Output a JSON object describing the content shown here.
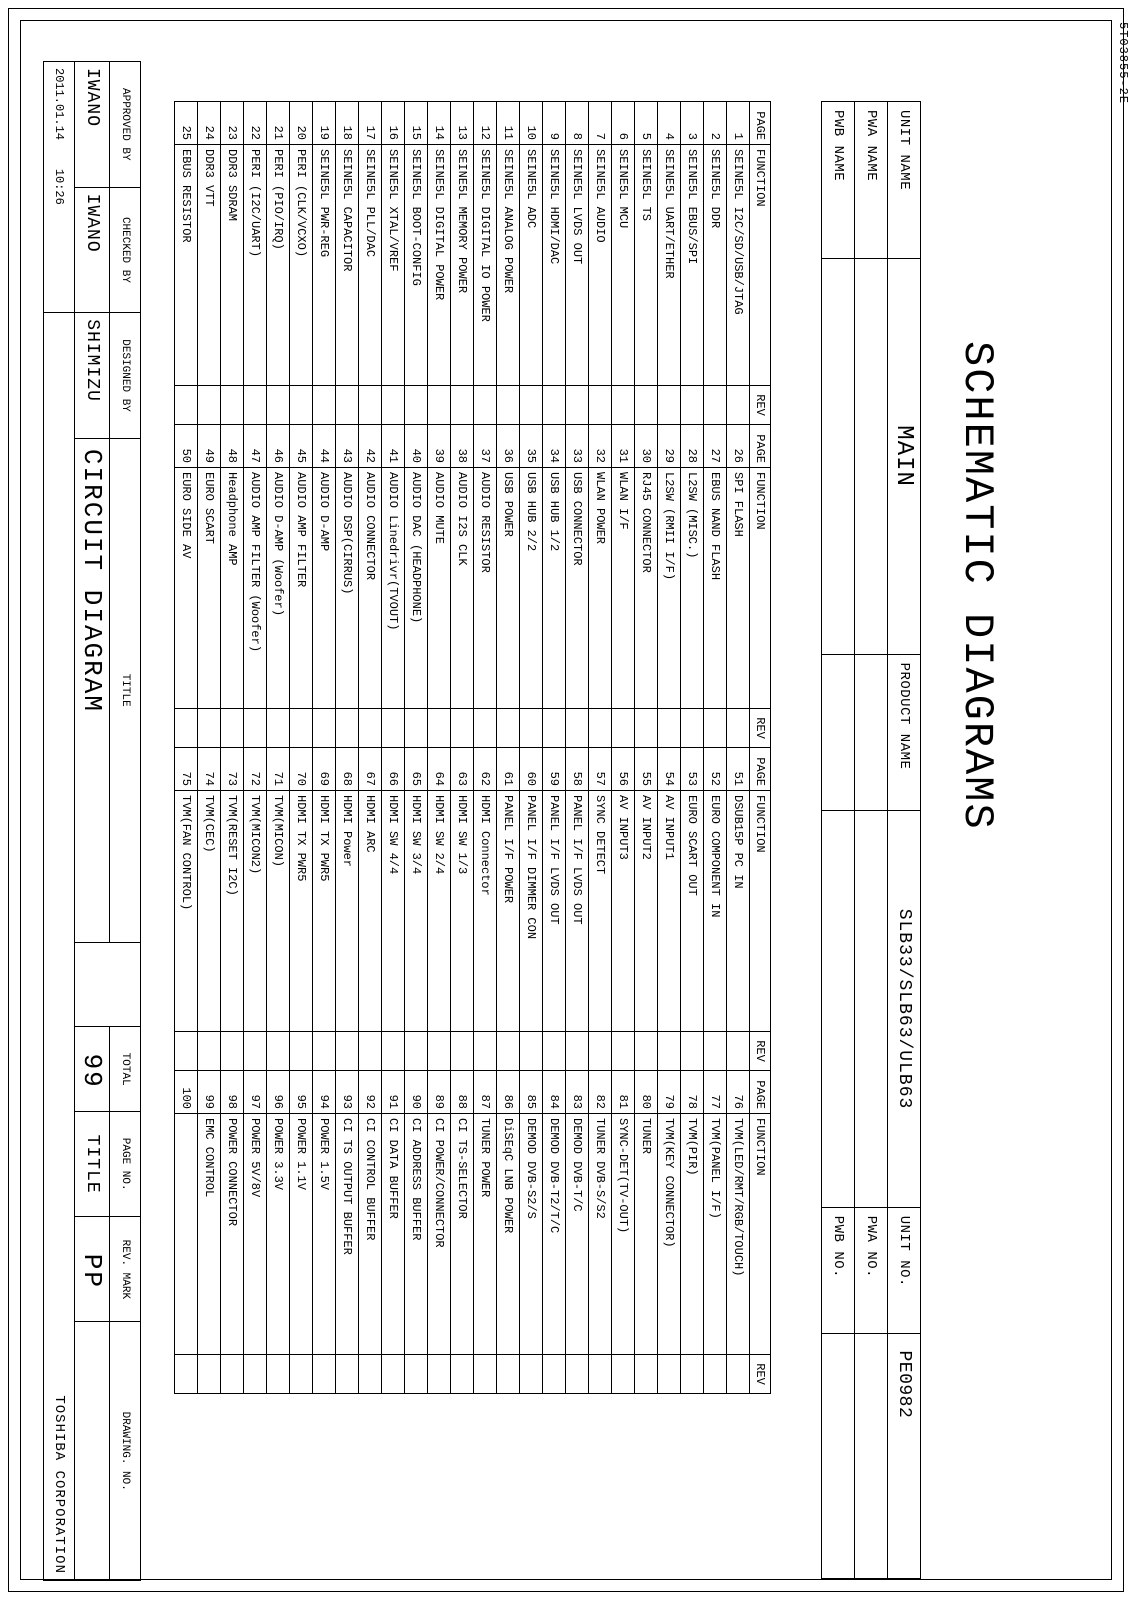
{
  "doc_code": "5T03855-2E",
  "title": "SCHEMATIC DIAGRAMS",
  "header": {
    "unit_name_label": "UNIT NAME",
    "unit_name_value": "MAIN",
    "product_name_label": "PRODUCT NAME",
    "product_name_value": "SLB33/SLB63/ULB63",
    "unit_no_label": "UNIT NO.",
    "unit_no_value": "PE0982",
    "pwa_name_label": "PWA NAME",
    "pwa_name_value": "",
    "pwa_no_label": "PWA NO.",
    "pwa_no_value": "",
    "pwb_name_label": "PWB NAME",
    "pwb_name_value": "",
    "pwb_no_label": "PWB NO.",
    "pwb_no_value": ""
  },
  "index": {
    "headers": {
      "page": "PAGE",
      "function": "FUNCTION",
      "rev": "REV"
    },
    "col1": [
      {
        "p": "1",
        "f": "SEINE5L I2C/SD/USB/JTAG"
      },
      {
        "p": "2",
        "f": "SEINE5L DDR"
      },
      {
        "p": "3",
        "f": "SEINE5L EBUS/SPI"
      },
      {
        "p": "4",
        "f": "SEINE5L UART/ETHER"
      },
      {
        "p": "5",
        "f": "SEINE5L TS"
      },
      {
        "p": "6",
        "f": "SEINE5L MCU"
      },
      {
        "p": "7",
        "f": "SEINE5L AUDIO"
      },
      {
        "p": "8",
        "f": "SEINE5L LVDS OUT"
      },
      {
        "p": "9",
        "f": "SEINE5L HDMI/DAC"
      },
      {
        "p": "10",
        "f": "SEINE5L ADC"
      },
      {
        "p": "11",
        "f": "SEINE5L ANALOG POWER"
      },
      {
        "p": "12",
        "f": "SEINE5L DIGITAL IO POWER"
      },
      {
        "p": "13",
        "f": "SEINE5L MEMORY POWER"
      },
      {
        "p": "14",
        "f": "SEINE5L DIGITAL POWER"
      },
      {
        "p": "15",
        "f": "SEINE5L BOOT-CONFIG"
      },
      {
        "p": "16",
        "f": "SEINE5L XTAL/VREF"
      },
      {
        "p": "17",
        "f": "SEINE5L PLL/DAC"
      },
      {
        "p": "18",
        "f": "SEINE5L CAPACITOR"
      },
      {
        "p": "19",
        "f": "SEINE5L PWR-REG"
      },
      {
        "p": "20",
        "f": "PERI (CLK/VCXO)"
      },
      {
        "p": "21",
        "f": "PERI (PIO/IRQ)"
      },
      {
        "p": "22",
        "f": "PERI (I2C/UART)"
      },
      {
        "p": "23",
        "f": "DDR3 SDRAM"
      },
      {
        "p": "24",
        "f": "DDR3 VTT"
      },
      {
        "p": "25",
        "f": "EBUS RESISTOR"
      }
    ],
    "col2": [
      {
        "p": "26",
        "f": "SPI FLASH"
      },
      {
        "p": "27",
        "f": "EBUS NAND FLASH"
      },
      {
        "p": "28",
        "f": "L2SW (MISC.)"
      },
      {
        "p": "29",
        "f": "L2SW (RMII I/F)"
      },
      {
        "p": "30",
        "f": "RJ45 CONNECTOR"
      },
      {
        "p": "31",
        "f": "WLAN I/F"
      },
      {
        "p": "32",
        "f": "WLAN POWER"
      },
      {
        "p": "33",
        "f": "USB CONNECTOR"
      },
      {
        "p": "34",
        "f": "USB HUB 1/2"
      },
      {
        "p": "35",
        "f": "USB HUB 2/2"
      },
      {
        "p": "36",
        "f": "USB POWER"
      },
      {
        "p": "37",
        "f": "AUDIO RESISTOR"
      },
      {
        "p": "38",
        "f": "AUDIO I2S CLK"
      },
      {
        "p": "39",
        "f": "AUDIO MUTE"
      },
      {
        "p": "40",
        "f": "AUDIO DAC (HEADPHONE)"
      },
      {
        "p": "41",
        "f": "AUDIO Linedrivr(TVOUT)"
      },
      {
        "p": "42",
        "f": "AUDIO CONNECTOR"
      },
      {
        "p": "43",
        "f": "AUDIO DSP(CIRRUS)"
      },
      {
        "p": "44",
        "f": "AUDIO D-AMP"
      },
      {
        "p": "45",
        "f": "AUDIO AMP FILTER"
      },
      {
        "p": "46",
        "f": "AUDIO D-AMP (Woofer)"
      },
      {
        "p": "47",
        "f": "AUDIO AMP FILTER (Woofer)"
      },
      {
        "p": "48",
        "f": "Headphone AMP"
      },
      {
        "p": "49",
        "f": "EURO SCART"
      },
      {
        "p": "50",
        "f": "EURO SIDE AV"
      }
    ],
    "col3": [
      {
        "p": "51",
        "f": "DSUB15P PC IN"
      },
      {
        "p": "52",
        "f": "EURO COMPONENT IN"
      },
      {
        "p": "53",
        "f": "EURO SCART OUT"
      },
      {
        "p": "54",
        "f": "AV INPUT1"
      },
      {
        "p": "55",
        "f": "AV INPUT2"
      },
      {
        "p": "56",
        "f": "AV INPUT3"
      },
      {
        "p": "57",
        "f": "SYNC DETECT"
      },
      {
        "p": "58",
        "f": "PANEL I/F LVDS OUT"
      },
      {
        "p": "59",
        "f": "PANEL I/F LVDS OUT"
      },
      {
        "p": "60",
        "f": "PANEL I/F DIMMER CON"
      },
      {
        "p": "61",
        "f": "PANEL I/F POWER"
      },
      {
        "p": "62",
        "f": "HDMI Connector"
      },
      {
        "p": "63",
        "f": "HDMI SW 1/3"
      },
      {
        "p": "64",
        "f": "HDMI SW 2/4"
      },
      {
        "p": "65",
        "f": "HDMI SW 3/4"
      },
      {
        "p": "66",
        "f": "HDMI SW 4/4"
      },
      {
        "p": "67",
        "f": "HDMI ARC"
      },
      {
        "p": "68",
        "f": "HDMI Power"
      },
      {
        "p": "69",
        "f": "HDMI TX PWR5"
      },
      {
        "p": "70",
        "f": "HDMI TX PWR5"
      },
      {
        "p": "71",
        "f": "TVM(MICON)"
      },
      {
        "p": "72",
        "f": "TVM(MICON2)"
      },
      {
        "p": "73",
        "f": "TVM(RESET I2C)"
      },
      {
        "p": "74",
        "f": "TVM(CEC)"
      },
      {
        "p": "75",
        "f": "TVM(FAN CONTROL)"
      }
    ],
    "col4": [
      {
        "p": "76",
        "f": "TVM(LED/RMT/RGB/TOUCH)"
      },
      {
        "p": "77",
        "f": "TVM(PANEL I/F)"
      },
      {
        "p": "78",
        "f": "TVM(PIR)"
      },
      {
        "p": "79",
        "f": "TVM(KEY CONNECTOR)"
      },
      {
        "p": "80",
        "f": "TUNER"
      },
      {
        "p": "81",
        "f": "SYNC-DET(TV-OUT)"
      },
      {
        "p": "82",
        "f": "TUNER DVB-S/S2"
      },
      {
        "p": "83",
        "f": "DEMOD DVB-T/C"
      },
      {
        "p": "84",
        "f": "DEMOD DVB-T2/T/C"
      },
      {
        "p": "85",
        "f": "DEMOD DVB-S2/S"
      },
      {
        "p": "86",
        "f": "DiSEqC LNB POWER"
      },
      {
        "p": "87",
        "f": "TUNER POWER"
      },
      {
        "p": "88",
        "f": "CI TS-SELECTOR"
      },
      {
        "p": "89",
        "f": "CI POWER/CONNECTOR"
      },
      {
        "p": "90",
        "f": "CI ADDRESS BUFFER"
      },
      {
        "p": "91",
        "f": "CI DATA BUFFER"
      },
      {
        "p": "92",
        "f": "CI CONTROL BUFFER"
      },
      {
        "p": "93",
        "f": "CI TS OUTPUT BUFFER"
      },
      {
        "p": "94",
        "f": "POWER 1.5V"
      },
      {
        "p": "95",
        "f": "POWER 1.1V"
      },
      {
        "p": "96",
        "f": "POWER 3.3V"
      },
      {
        "p": "97",
        "f": "POWER 5V/8V"
      },
      {
        "p": "98",
        "f": "POWER CONNECTOR"
      },
      {
        "p": "99",
        "f": "EMC CONTROL"
      },
      {
        "p": "100",
        "f": ""
      }
    ]
  },
  "title_block": {
    "approved_by_label": "APPROVED BY",
    "approved_by_value": "IWANO",
    "checked_by_label": "CHECKED BY",
    "checked_by_value": "IWANO",
    "designed_by_label": "DESIGNED BY",
    "designed_by_value": "SHIMIZU",
    "date_label": "",
    "date_value": "2011.01.14",
    "time_label": "",
    "time_value": "10:26",
    "title_label": "TITLE",
    "title_value": "CIRCUIT DIAGRAM",
    "total_label": "TOTAL",
    "total_value": "99",
    "page_no_label": "PAGE NO.",
    "page_no_value": "TITLE",
    "rev_mark_label": "REV. MARK",
    "rev_mark_value": "PP",
    "drawing_no_label": "DRAWING. NO.",
    "drawing_no_value": "",
    "company": "TOSHIBA CORPORATION"
  }
}
